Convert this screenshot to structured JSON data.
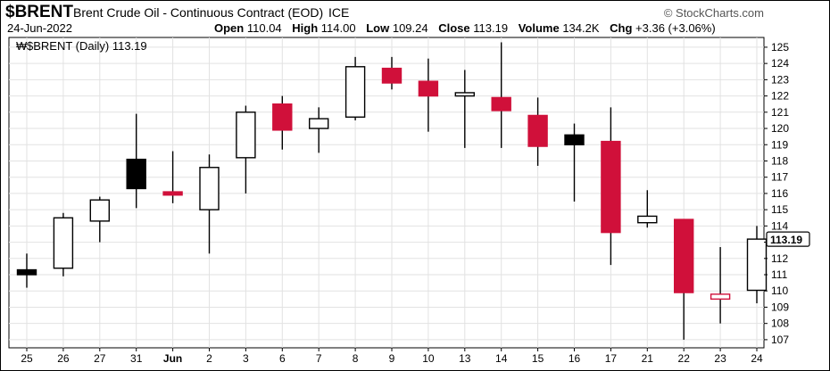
{
  "header": {
    "symbol": "$BRENT",
    "description": "Brent Crude Oil - Continuous Contract (EOD)",
    "exchange": "ICE",
    "brand": "© StockCharts.com",
    "date": "24-Jun-2022",
    "open_label": "Open",
    "open": "110.04",
    "high_label": "High",
    "high": "114.00",
    "low_label": "Low",
    "low": "109.24",
    "close_label": "Close",
    "close": "113.19",
    "volume_label": "Volume",
    "volume": "134.2K",
    "chg_label": "Chg",
    "chg": "+3.36 (+3.06%)"
  },
  "legend": {
    "text": "$BRENT (Daily) 113.19"
  },
  "colors": {
    "up_fill": "#ffffff",
    "down_fill": "#d0103a",
    "black_fill": "#000000",
    "wick": "#000000",
    "grid": "#e2e2e2"
  },
  "chart_data": {
    "type": "candlestick",
    "ylim": [
      106.5,
      125.6
    ],
    "y_ticks": [
      107,
      108,
      109,
      110,
      111,
      112,
      113,
      114,
      115,
      116,
      117,
      118,
      119,
      120,
      121,
      122,
      123,
      124,
      125
    ],
    "last_price_label": "113.19",
    "categories": [
      "25",
      "26",
      "27",
      "31",
      "Jun",
      "2",
      "3",
      "6",
      "7",
      "8",
      "9",
      "10",
      "13",
      "14",
      "15",
      "16",
      "17",
      "21",
      "22",
      "23",
      "24"
    ],
    "candles": [
      {
        "x": "25",
        "open": 111.0,
        "high": 112.3,
        "low": 110.2,
        "close": 111.3,
        "color": "black"
      },
      {
        "x": "26",
        "open": 111.4,
        "high": 114.8,
        "low": 110.9,
        "close": 114.5,
        "color": "up"
      },
      {
        "x": "27",
        "open": 114.3,
        "high": 115.8,
        "low": 113.0,
        "close": 115.6,
        "color": "up"
      },
      {
        "x": "31",
        "open": 118.1,
        "high": 120.9,
        "low": 115.1,
        "close": 116.3,
        "color": "black"
      },
      {
        "x": "Jun",
        "open": 116.1,
        "high": 118.6,
        "low": 115.4,
        "close": 115.9,
        "color": "down"
      },
      {
        "x": "2",
        "open": 115.0,
        "high": 118.4,
        "low": 112.3,
        "close": 117.6,
        "color": "up"
      },
      {
        "x": "3",
        "open": 118.2,
        "high": 121.4,
        "low": 116.0,
        "close": 121.0,
        "color": "up"
      },
      {
        "x": "6",
        "open": 121.5,
        "high": 122.0,
        "low": 118.7,
        "close": 119.9,
        "color": "down"
      },
      {
        "x": "7",
        "open": 120.0,
        "high": 121.3,
        "low": 118.5,
        "close": 120.6,
        "color": "up"
      },
      {
        "x": "8",
        "open": 120.7,
        "high": 124.4,
        "low": 120.5,
        "close": 123.8,
        "color": "up"
      },
      {
        "x": "9",
        "open": 123.7,
        "high": 124.4,
        "low": 122.4,
        "close": 122.8,
        "color": "down"
      },
      {
        "x": "10",
        "open": 122.9,
        "high": 124.3,
        "low": 119.8,
        "close": 122.0,
        "color": "down"
      },
      {
        "x": "13",
        "open": 122.0,
        "high": 123.6,
        "low": 118.8,
        "close": 122.2,
        "color": "up"
      },
      {
        "x": "14",
        "open": 121.9,
        "high": 125.3,
        "low": 118.8,
        "close": 121.1,
        "color": "down"
      },
      {
        "x": "15",
        "open": 120.8,
        "high": 121.9,
        "low": 117.7,
        "close": 118.9,
        "color": "down"
      },
      {
        "x": "16",
        "open": 119.6,
        "high": 120.3,
        "low": 115.5,
        "close": 119.0,
        "color": "black"
      },
      {
        "x": "17",
        "open": 119.2,
        "high": 121.3,
        "low": 111.6,
        "close": 113.6,
        "color": "down"
      },
      {
        "x": "21",
        "open": 114.2,
        "high": 116.2,
        "low": 113.9,
        "close": 114.6,
        "color": "up"
      },
      {
        "x": "22",
        "open": 114.4,
        "high": 114.4,
        "low": 107.0,
        "close": 109.9,
        "color": "down"
      },
      {
        "x": "23",
        "open": 109.5,
        "high": 112.7,
        "low": 108.0,
        "close": 109.8,
        "color": "down_outline"
      },
      {
        "x": "24",
        "open": 110.04,
        "high": 114.0,
        "low": 109.24,
        "close": 113.19,
        "color": "up"
      }
    ]
  }
}
